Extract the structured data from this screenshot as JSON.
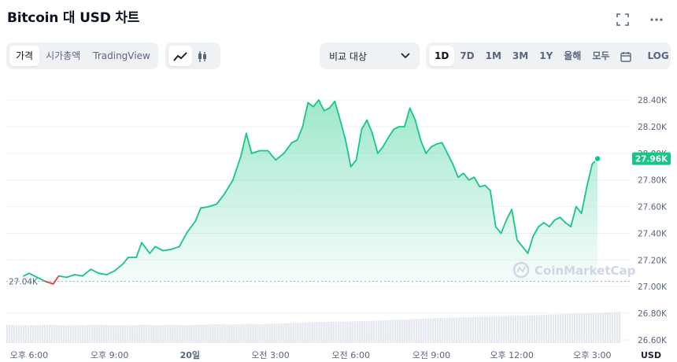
{
  "header": {
    "title": "Bitcoin 대 USD 차트",
    "fullscreen_icon": "expand-icon",
    "more_icon": "more-dots-icon"
  },
  "toolbar": {
    "view_tabs": [
      "가격",
      "시가총액",
      "TradingView"
    ],
    "active_view": "가격",
    "chart_style_icons": [
      "line-chart-icon",
      "candlestick-icon"
    ],
    "compare_label": "비교 대상",
    "ranges": [
      "1D",
      "7D",
      "1M",
      "3M",
      "1Y",
      "올해",
      "모두"
    ],
    "active_range": "1D",
    "calendar_icon": "calendar-icon",
    "log_label": "LOG"
  },
  "watermark": "CoinMarketCap",
  "colors": {
    "line": "#16c784",
    "down": "#ea3943",
    "badge": "#16c784"
  },
  "chart_data": {
    "type": "area",
    "currency": "USD",
    "current_price_label": "27.96K",
    "open_price_label": "27.04K",
    "y_ticks": [
      "28.40K",
      "28.20K",
      "28.00K",
      "27.80K",
      "27.60K",
      "27.40K",
      "27.20K",
      "27.00K",
      "26.80K",
      "26.60K"
    ],
    "ylim": [
      26.6,
      28.56
    ],
    "x_ticks": [
      "오후 6:00",
      "오후 9:00",
      "20일",
      "오전 3:00",
      "오전 6:00",
      "오전 9:00",
      "오후 12:00",
      "오후 3:00"
    ],
    "x_hours": [
      0,
      3,
      6,
      9,
      12,
      15,
      18,
      21
    ],
    "xlim": [
      -0.85,
      22.4
    ],
    "open_price": 27.04,
    "series": [
      {
        "values": [
          [
            -0.2,
            27.08
          ],
          [
            0.0,
            27.1
          ],
          [
            0.3,
            27.07
          ],
          [
            0.6,
            27.04
          ],
          [
            0.9,
            27.02
          ],
          [
            1.1,
            27.08
          ],
          [
            1.4,
            27.07
          ],
          [
            1.7,
            27.09
          ],
          [
            2.0,
            27.08
          ],
          [
            2.3,
            27.13
          ],
          [
            2.6,
            27.1
          ],
          [
            2.9,
            27.09
          ],
          [
            3.2,
            27.12
          ],
          [
            3.5,
            27.17
          ],
          [
            3.7,
            27.22
          ],
          [
            4.0,
            27.22
          ],
          [
            4.2,
            27.33
          ],
          [
            4.5,
            27.25
          ],
          [
            4.7,
            27.3
          ],
          [
            5.0,
            27.27
          ],
          [
            5.3,
            27.28
          ],
          [
            5.6,
            27.3
          ],
          [
            5.9,
            27.41
          ],
          [
            6.2,
            27.49
          ],
          [
            6.4,
            27.59
          ],
          [
            6.7,
            27.6
          ],
          [
            7.0,
            27.62
          ],
          [
            7.3,
            27.7
          ],
          [
            7.6,
            27.8
          ],
          [
            7.9,
            27.98
          ],
          [
            8.1,
            28.15
          ],
          [
            8.3,
            28.0
          ],
          [
            8.6,
            28.02
          ],
          [
            8.9,
            28.02
          ],
          [
            9.2,
            27.95
          ],
          [
            9.5,
            28.0
          ],
          [
            9.8,
            28.08
          ],
          [
            10.0,
            28.1
          ],
          [
            10.2,
            28.2
          ],
          [
            10.4,
            28.38
          ],
          [
            10.6,
            28.35
          ],
          [
            10.8,
            28.4
          ],
          [
            11.0,
            28.32
          ],
          [
            11.2,
            28.34
          ],
          [
            11.4,
            28.39
          ],
          [
            11.6,
            28.25
          ],
          [
            11.8,
            28.1
          ],
          [
            12.0,
            27.9
          ],
          [
            12.2,
            27.95
          ],
          [
            12.4,
            28.18
          ],
          [
            12.6,
            28.25
          ],
          [
            12.8,
            28.15
          ],
          [
            13.0,
            28.0
          ],
          [
            13.2,
            28.05
          ],
          [
            13.4,
            28.12
          ],
          [
            13.6,
            28.18
          ],
          [
            13.8,
            28.2
          ],
          [
            14.0,
            28.2
          ],
          [
            14.2,
            28.34
          ],
          [
            14.4,
            28.25
          ],
          [
            14.6,
            28.1
          ],
          [
            14.8,
            28.0
          ],
          [
            15.0,
            28.05
          ],
          [
            15.2,
            28.07
          ],
          [
            15.4,
            28.08
          ],
          [
            15.6,
            28.0
          ],
          [
            15.8,
            27.92
          ],
          [
            16.0,
            27.82
          ],
          [
            16.2,
            27.85
          ],
          [
            16.4,
            27.8
          ],
          [
            16.6,
            27.82
          ],
          [
            16.8,
            27.75
          ],
          [
            17.0,
            27.76
          ],
          [
            17.2,
            27.72
          ],
          [
            17.4,
            27.45
          ],
          [
            17.6,
            27.4
          ],
          [
            17.8,
            27.5
          ],
          [
            18.0,
            27.58
          ],
          [
            18.2,
            27.35
          ],
          [
            18.4,
            27.3
          ],
          [
            18.6,
            27.25
          ],
          [
            18.8,
            27.38
          ],
          [
            19.0,
            27.45
          ],
          [
            19.2,
            27.48
          ],
          [
            19.4,
            27.45
          ],
          [
            19.6,
            27.5
          ],
          [
            19.8,
            27.52
          ],
          [
            20.0,
            27.48
          ],
          [
            20.2,
            27.45
          ],
          [
            20.4,
            27.6
          ],
          [
            20.6,
            27.55
          ],
          [
            20.8,
            27.75
          ],
          [
            21.0,
            27.92
          ],
          [
            21.2,
            27.96
          ]
        ]
      }
    ],
    "volume_series": {
      "comment_free": true,
      "values": [
        0.58,
        0.56,
        0.57,
        0.58,
        0.56,
        0.57,
        0.58,
        0.57,
        0.56,
        0.58,
        0.57,
        0.58,
        0.57,
        0.58,
        0.6,
        0.59,
        0.61,
        0.6,
        0.62,
        0.64,
        0.66,
        0.67,
        0.68,
        0.69,
        0.7,
        0.72,
        0.74,
        0.76,
        0.78,
        0.8,
        0.81,
        0.82,
        0.84,
        0.85,
        0.87,
        0.88,
        0.9,
        0.92,
        0.94,
        0.95,
        0.97,
        1.0
      ]
    }
  }
}
